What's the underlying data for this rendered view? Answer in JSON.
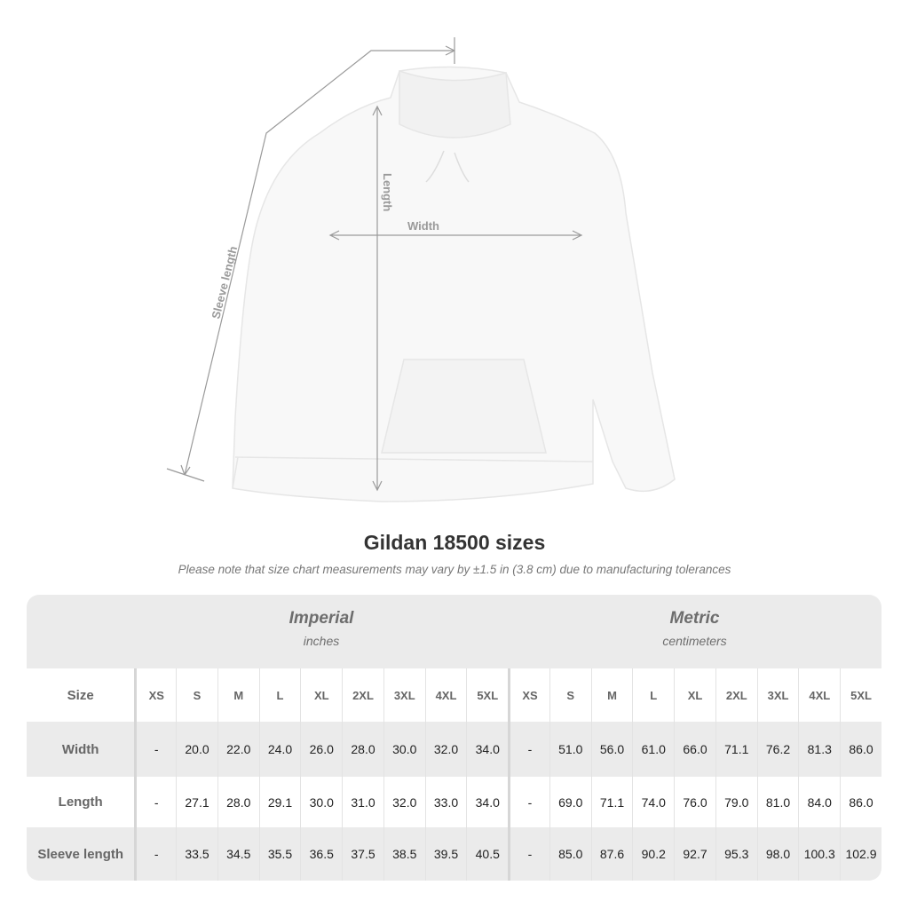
{
  "diagram": {
    "labels": {
      "sleeve": "Sleeve length",
      "length": "Length",
      "width": "Width"
    },
    "colors": {
      "measure_line": "#9a9a9a",
      "garment": "#f7f7f7"
    }
  },
  "title": "Gildan 18500 sizes",
  "note": "Please note that size chart measurements may vary by ±1.5 in (3.8 cm) due to manufacturing tolerances",
  "table": {
    "groups": [
      {
        "name": "Imperial",
        "unit": "inches"
      },
      {
        "name": "Metric",
        "unit": "centimeters"
      }
    ],
    "size_label": "Size",
    "sizes": [
      "XS",
      "S",
      "M",
      "L",
      "XL",
      "2XL",
      "3XL",
      "4XL",
      "5XL"
    ],
    "rows": [
      {
        "label": "Width",
        "imperial": [
          "-",
          "20.0",
          "22.0",
          "24.0",
          "26.0",
          "28.0",
          "30.0",
          "32.0",
          "34.0"
        ],
        "metric": [
          "-",
          "51.0",
          "56.0",
          "61.0",
          "66.0",
          "71.1",
          "76.2",
          "81.3",
          "86.0"
        ]
      },
      {
        "label": "Length",
        "imperial": [
          "-",
          "27.1",
          "28.0",
          "29.1",
          "30.0",
          "31.0",
          "32.0",
          "33.0",
          "34.0"
        ],
        "metric": [
          "-",
          "69.0",
          "71.1",
          "74.0",
          "76.0",
          "79.0",
          "81.0",
          "84.0",
          "86.0"
        ]
      },
      {
        "label": "Sleeve length",
        "imperial": [
          "-",
          "33.5",
          "34.5",
          "35.5",
          "36.5",
          "37.5",
          "38.5",
          "39.5",
          "40.5"
        ],
        "metric": [
          "-",
          "85.0",
          "87.6",
          "90.2",
          "92.7",
          "95.3",
          "98.0",
          "100.3",
          "102.9"
        ]
      }
    ],
    "colors": {
      "band": "#ebebeb",
      "header_text": "#6d6d6d"
    }
  }
}
